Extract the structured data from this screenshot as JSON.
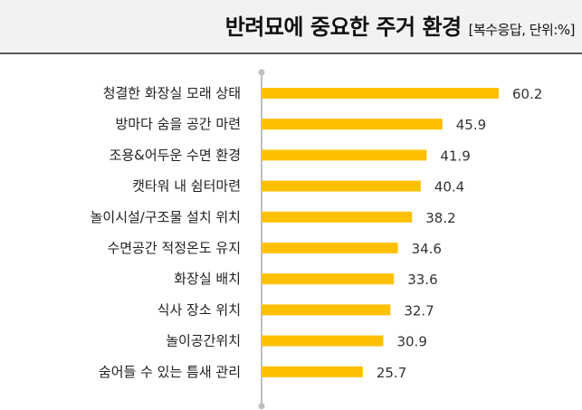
{
  "header": {
    "title": "반려묘에 중요한 주거 환경",
    "subtitle": "[복수응답, 단위:%]"
  },
  "chart_data": {
    "type": "bar",
    "orientation": "horizontal",
    "title": "반려묘에 중요한 주거 환경",
    "subtitle": "[복수응답, 단위:%]",
    "categories": [
      "청결한 화장실 모래 상태",
      "방마다 숨을 공간 마련",
      "조용&어두운 수면 환경",
      "캣타워 내 쉼터마련",
      "놀이시설/구조물 설치 위치",
      "수면공간 적정온도 유지",
      "화장실 배치",
      "식사 장소 위치",
      "놀이공간위치",
      "숨어들 수 있는 틈새 관리"
    ],
    "values": [
      60.2,
      45.9,
      41.9,
      40.4,
      38.2,
      34.6,
      33.6,
      32.7,
      30.9,
      25.7
    ],
    "value_labels": [
      "60.2",
      "45.9",
      "41.9",
      "40.4",
      "38.2",
      "34.6",
      "33.6",
      "32.7",
      "30.9",
      "25.7"
    ],
    "xlim": [
      0,
      60.2
    ],
    "bar_color": "#ffc000",
    "axis_color": "#bfbfbf",
    "grid": false,
    "legend": "none"
  }
}
